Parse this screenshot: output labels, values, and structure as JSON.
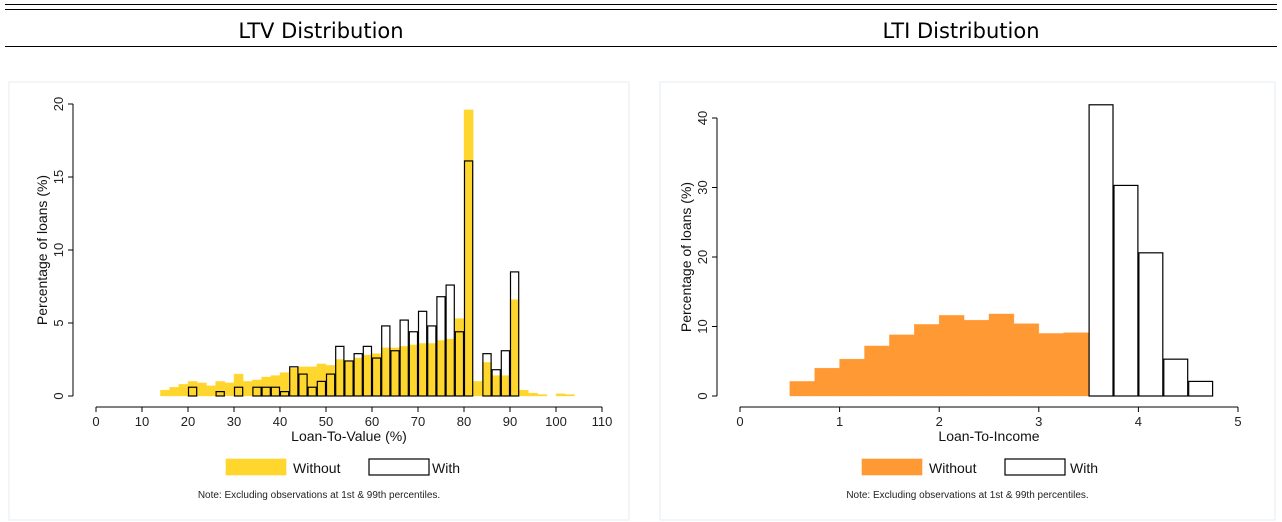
{
  "header": {
    "left_title": "LTV Distribution",
    "right_title": "LTI Distribution"
  },
  "chart_data": [
    {
      "type": "bar",
      "title": "LTV Distribution",
      "xlabel": "Loan-To-Value (%)",
      "ylabel": "Percentage of loans (%)",
      "xlim": [
        0,
        110
      ],
      "ylim": [
        0,
        20
      ],
      "xticks": [
        "0",
        "10",
        "20",
        "30",
        "40",
        "50",
        "60",
        "70",
        "80",
        "90",
        "100",
        "110"
      ],
      "yticks": [
        "0",
        "5",
        "10",
        "15",
        "20"
      ],
      "bin_width": 2,
      "x": [
        15,
        17,
        19,
        21,
        23,
        25,
        27,
        29,
        31,
        33,
        35,
        37,
        39,
        41,
        43,
        45,
        47,
        49,
        51,
        53,
        55,
        57,
        59,
        61,
        63,
        65,
        67,
        69,
        71,
        73,
        75,
        77,
        79,
        81,
        83,
        85,
        87,
        89,
        91,
        93,
        95,
        97,
        99,
        101,
        103,
        105
      ],
      "series": [
        {
          "name": "Without",
          "color": "#ffd62e",
          "values": [
            0.4,
            0.6,
            0.8,
            1.0,
            0.9,
            0.7,
            1.0,
            0.9,
            1.5,
            1.0,
            1.1,
            1.3,
            1.4,
            1.6,
            1.9,
            2.0,
            2.0,
            2.2,
            2.1,
            2.5,
            2.4,
            2.6,
            2.8,
            2.9,
            3.3,
            3.3,
            3.4,
            3.5,
            3.6,
            3.6,
            3.8,
            3.9,
            5.3,
            19.6,
            1.0,
            2.3,
            1.4,
            1.4,
            6.6,
            0.4,
            0.2,
            0.1,
            0.0,
            0.15,
            0.1,
            0.0
          ]
        },
        {
          "name": "With",
          "color": "#000000",
          "values": [
            0,
            0,
            0,
            0.6,
            0,
            0,
            0.3,
            0,
            0.6,
            0,
            0.6,
            0.6,
            0.6,
            0.3,
            2.0,
            1.5,
            0.6,
            1.0,
            1.5,
            3.4,
            2.4,
            2.9,
            3.4,
            2.6,
            4.8,
            3.1,
            5.2,
            4.4,
            5.8,
            4.8,
            6.8,
            7.6,
            4.4,
            16.1,
            0,
            2.9,
            1.8,
            3.1,
            8.5,
            0,
            0,
            0,
            0,
            0,
            0,
            0
          ]
        }
      ],
      "legend": "bottom",
      "note": "Note: Excluding observations at 1st & 99th percentiles."
    },
    {
      "type": "bar",
      "title": "LTI Distribution",
      "xlabel": "Loan-To-Income",
      "ylabel": "Percentage of loans (%)",
      "xlim": [
        0,
        5
      ],
      "ylim": [
        0,
        40
      ],
      "xticks": [
        "0",
        "1",
        "2",
        "3",
        "4",
        "5"
      ],
      "yticks": [
        "0",
        "10",
        "20",
        "30",
        "40"
      ],
      "bin_width": 0.25,
      "x": [
        0.625,
        0.875,
        1.125,
        1.375,
        1.625,
        1.875,
        2.125,
        2.375,
        2.625,
        2.875,
        3.125,
        3.375,
        3.625,
        3.875,
        4.125,
        4.375,
        4.625
      ],
      "series": [
        {
          "name": "Without",
          "color": "#ff9933",
          "values": [
            2.1,
            4.0,
            5.3,
            7.2,
            8.8,
            10.3,
            11.6,
            10.9,
            11.8,
            10.4,
            9.0,
            9.1,
            0,
            0,
            0,
            0,
            0
          ]
        },
        {
          "name": "With",
          "color": "#000000",
          "values": [
            0,
            0,
            0,
            0,
            0,
            0,
            0,
            0,
            0,
            0,
            0,
            0,
            41.9,
            30.3,
            20.6,
            5.3,
            2.1
          ]
        }
      ],
      "legend": "bottom",
      "note": "Note: Excluding observations at 1st & 99th percentiles."
    }
  ]
}
